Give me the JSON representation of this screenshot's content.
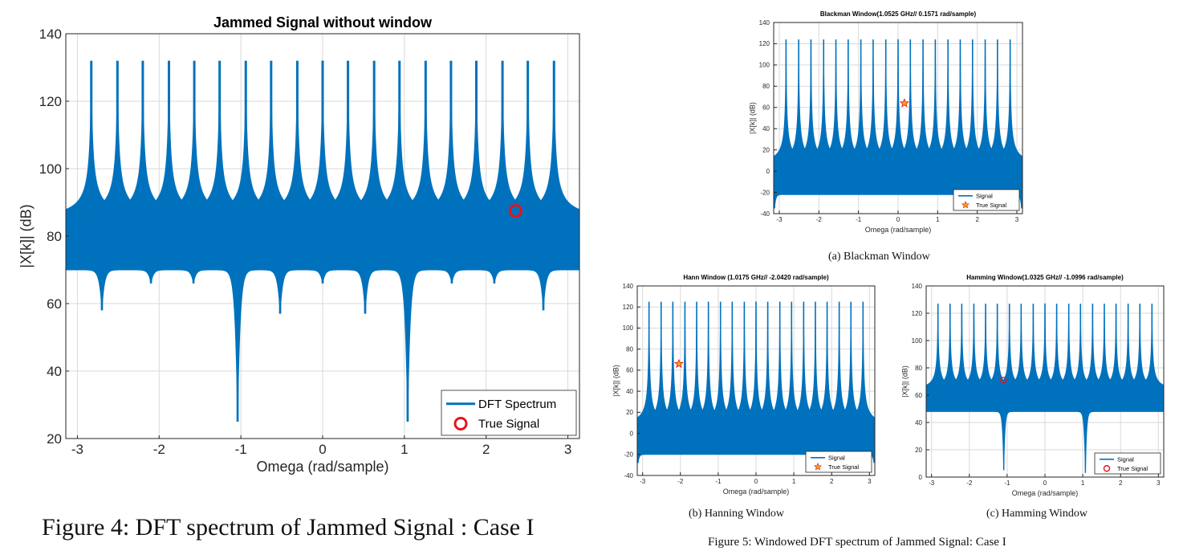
{
  "colors": {
    "signal": "#0072bd",
    "marker_red": "#e3141c",
    "marker_star": "#f5a020",
    "grid": "#d9d9d9"
  },
  "captions": {
    "fig4": "Figure 4: DFT spectrum of Jammed Signal : Case I",
    "fig5a": "(a) Blackman Window",
    "fig5b": "(b) Hanning Window",
    "fig5c": "(c) Hamming Window",
    "fig5": "Figure 5: Windowed DFT spectrum of Jammed Signal: Case I"
  },
  "chart_data": [
    {
      "id": "fig4",
      "type": "line",
      "title": "Jammed Signal without window",
      "xlabel": "Omega (rad/sample)",
      "ylabel": "|X[k]| (dB)",
      "xlim": [
        -3.1416,
        3.1416
      ],
      "ylim": [
        20,
        140
      ],
      "xticks": [
        -3,
        -2,
        -1,
        0,
        1,
        2,
        3
      ],
      "yticks": [
        20,
        40,
        60,
        80,
        100,
        120,
        140
      ],
      "grid": true,
      "legend_position": "bottom-right",
      "marker": "circle",
      "series": [
        {
          "name": "DFT Spectrum",
          "peak_x": [
            -2.83,
            -2.51,
            -2.2,
            -1.88,
            -1.57,
            -1.26,
            -0.94,
            -0.63,
            -0.31,
            0.0,
            0.31,
            0.63,
            0.94,
            1.26,
            1.57,
            1.88,
            2.2,
            2.51,
            2.83
          ],
          "peak_y": 132,
          "upper_floor": 84,
          "lower_floor": 70,
          "dips": [
            {
              "x": -2.7,
              "y": 58
            },
            {
              "x": -2.1,
              "y": 66
            },
            {
              "x": -1.58,
              "y": 66
            },
            {
              "x": -1.04,
              "y": 25
            },
            {
              "x": -0.52,
              "y": 57
            },
            {
              "x": 0.0,
              "y": 66
            },
            {
              "x": 0.52,
              "y": 57
            },
            {
              "x": 1.04,
              "y": 25
            },
            {
              "x": 1.58,
              "y": 66
            },
            {
              "x": 2.1,
              "y": 66
            },
            {
              "x": 2.7,
              "y": 58
            }
          ]
        },
        {
          "name": "True Signal",
          "x": [
            2.36
          ],
          "y": [
            87.5
          ]
        }
      ]
    },
    {
      "id": "fig5a",
      "type": "line",
      "title": "Blackman Window(1.0525 GHz// 0.1571 rad/sample)",
      "xlabel": "Omega (rad/sample)",
      "ylabel": "|X[k]| (dB)",
      "xlim": [
        -3.1416,
        3.1416
      ],
      "ylim": [
        -40,
        140
      ],
      "xticks": [
        -3,
        -2,
        -1,
        0,
        1,
        2,
        3
      ],
      "yticks": [
        -40,
        -20,
        0,
        20,
        40,
        60,
        80,
        100,
        120,
        140
      ],
      "grid": true,
      "legend_position": "bottom-right",
      "marker": "star",
      "series": [
        {
          "name": "Signal",
          "peak_x": [
            -2.83,
            -2.51,
            -2.2,
            -1.88,
            -1.57,
            -1.26,
            -0.94,
            -0.63,
            -0.31,
            0.0,
            0.31,
            0.63,
            0.94,
            1.26,
            1.57,
            1.88,
            2.2,
            2.51,
            2.83
          ],
          "peak_y": 124,
          "upper_floor": 4,
          "lower_floor": -22,
          "dips": [
            {
              "x": -3.12,
              "y": -35
            },
            {
              "x": 3.12,
              "y": -35
            }
          ]
        },
        {
          "name": "True Signal",
          "x": [
            0.16
          ],
          "y": [
            64
          ]
        }
      ]
    },
    {
      "id": "fig5b",
      "type": "line",
      "title": "Hann Window (1.0175 GHz// -2.0420 rad/sample)",
      "xlabel": "Omega (rad/sample)",
      "ylabel": "|X[k]| (dB)",
      "xlim": [
        -3.1416,
        3.1416
      ],
      "ylim": [
        -40,
        140
      ],
      "xticks": [
        -3,
        -2,
        -1,
        0,
        1,
        2,
        3
      ],
      "yticks": [
        -40,
        -20,
        0,
        20,
        40,
        60,
        80,
        100,
        120,
        140
      ],
      "grid": true,
      "legend_position": "bottom-right",
      "marker": "star",
      "series": [
        {
          "name": "Signal",
          "peak_x": [
            -2.83,
            -2.51,
            -2.2,
            -1.88,
            -1.57,
            -1.26,
            -0.94,
            -0.63,
            -0.31,
            0.0,
            0.31,
            0.63,
            0.94,
            1.26,
            1.57,
            1.88,
            2.2,
            2.51,
            2.83
          ],
          "peak_y": 125,
          "upper_floor": 5,
          "lower_floor": -20,
          "dips": [
            {
              "x": -3.12,
              "y": -28
            },
            {
              "x": 3.12,
              "y": -28
            }
          ]
        },
        {
          "name": "True Signal",
          "x": [
            -2.04
          ],
          "y": [
            66
          ]
        }
      ]
    },
    {
      "id": "fig5c",
      "type": "line",
      "title": "Hamming Window(1.0325 GHz// -1.0996 rad/sample)",
      "xlabel": "Omega (rad/sample)",
      "ylabel": "|X[k]| (dB)",
      "xlim": [
        -3.1416,
        3.1416
      ],
      "ylim": [
        0,
        140
      ],
      "xticks": [
        -3,
        -2,
        -1,
        0,
        1,
        2,
        3
      ],
      "yticks": [
        0,
        20,
        40,
        60,
        80,
        100,
        120,
        140
      ],
      "grid": true,
      "legend_position": "bottom-right",
      "marker": "circle",
      "series": [
        {
          "name": "Signal",
          "peak_x": [
            -2.83,
            -2.51,
            -2.2,
            -1.88,
            -1.57,
            -1.26,
            -0.94,
            -0.63,
            -0.31,
            0.0,
            0.31,
            0.63,
            0.94,
            1.26,
            1.57,
            1.88,
            2.2,
            2.51,
            2.83
          ],
          "peak_y": 127,
          "upper_floor": 62,
          "lower_floor": 48,
          "dips": [
            {
              "x": -1.09,
              "y": 5
            },
            {
              "x": 1.07,
              "y": 3
            }
          ]
        },
        {
          "name": "True Signal",
          "x": [
            -1.1
          ],
          "y": [
            71
          ]
        }
      ]
    }
  ]
}
